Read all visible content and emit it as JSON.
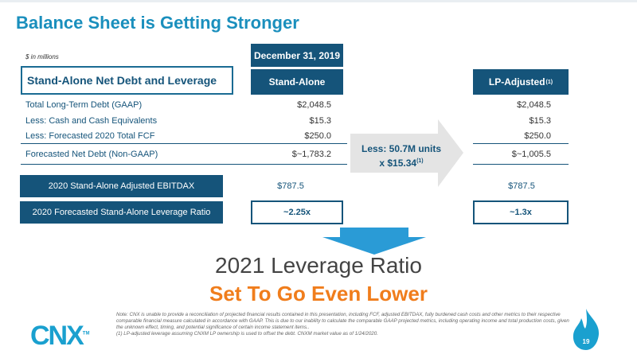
{
  "title": "Balance Sheet is Getting Stronger",
  "period_header": "December 31, 2019",
  "units_note": "$ in millions",
  "section_title": "Stand-Alone Net Debt and Leverage",
  "columns": {
    "stand_alone": "Stand-Alone",
    "lp_adjusted": "LP-Adjusted",
    "lp_footnote": "(1)"
  },
  "rows": [
    {
      "label": "Total Long-Term Debt (GAAP)",
      "stand_alone": "$2,048.5",
      "lp_adjusted": "$2,048.5"
    },
    {
      "label": "Less: Cash and Cash Equivalents",
      "stand_alone": "$15.3",
      "lp_adjusted": "$15.3"
    },
    {
      "label": "Less: Forecasted 2020 Total FCF",
      "stand_alone": "$250.0",
      "lp_adjusted": "$250.0"
    },
    {
      "label": "Forecasted Net Debt (Non-GAAP)",
      "stand_alone": "$~1,783.2",
      "lp_adjusted": "$~1,005.5"
    }
  ],
  "ebitdax": {
    "label": "2020 Stand-Alone Adjusted EBITDAX",
    "stand_alone": "$787.5",
    "lp_adjusted": "$787.5"
  },
  "leverage": {
    "label": "2020 Forecasted Stand-Alone Leverage Ratio",
    "stand_alone": "~2.25x",
    "lp_adjusted": "~1.3x"
  },
  "arrow_callout": {
    "line1": "Less: 50.7M units",
    "line2": "x $15.34",
    "footnote": "(1)"
  },
  "headline": {
    "line1": "2021 Leverage Ratio",
    "line2": "Set To Go Even Lower"
  },
  "notes": [
    "Note: CNX is unable to provide a reconciliation of projected financial results contained in this presentation, including FCF, adjusted EBITDAX, fully burdened cash costs and other metrics to their respective comparable financial measure calculated in accordance with GAAP. This is due to our inability to calculate the comparable GAAP projected metrics, including operating income and total production costs, given the unknown effect, timing, and potential significance of certain income statement items..",
    "(1)   LP-adjusted leverage assuming CNXM LP ownership is used to offset the debt. CNXM market value as of 1/24/2020."
  ],
  "logo": {
    "text": "CNX",
    "mark": "TM"
  },
  "page_number": "19",
  "colors": {
    "navy": "#15547a",
    "blue": "#1a8fbd",
    "orange": "#f07d1c",
    "arrow_gray": "#e4e4e4",
    "flame": "#1aa0cf"
  }
}
